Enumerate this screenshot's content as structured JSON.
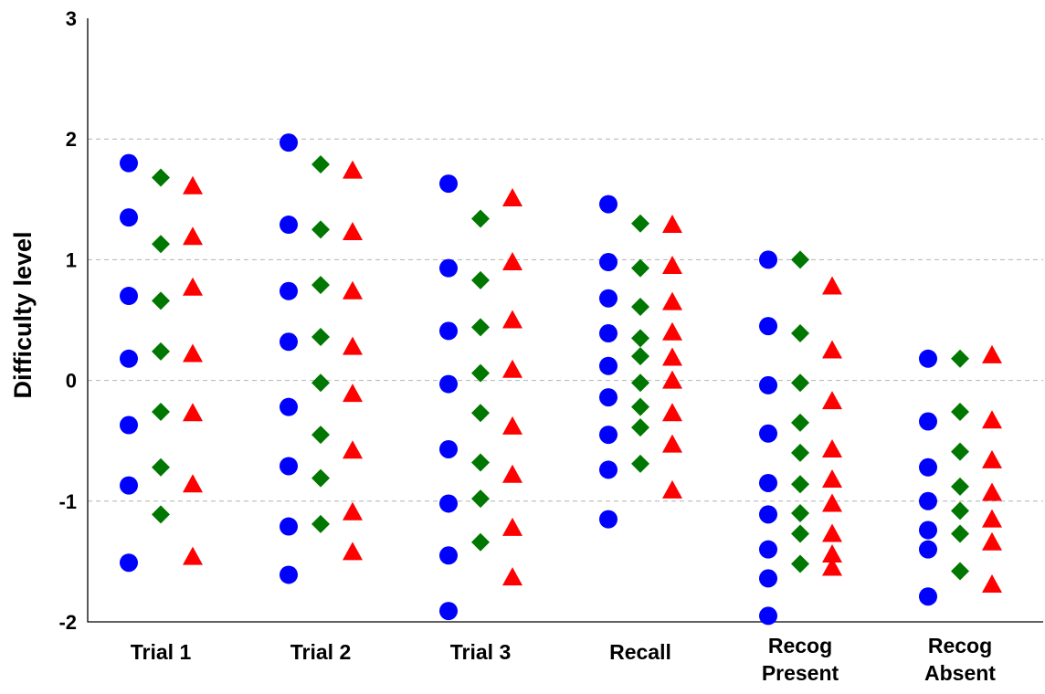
{
  "chart_data": {
    "type": "scatter",
    "title": "",
    "ylabel": "Difficulty level",
    "xlabel": "",
    "ylim": [
      -2,
      3
    ],
    "yticks": [
      -2,
      -1,
      0,
      1,
      2,
      3
    ],
    "grid": true,
    "categories": [
      [
        "Trial 1"
      ],
      [
        "Trial 2"
      ],
      [
        "Trial 3"
      ],
      [
        "Recall"
      ],
      [
        "Recog",
        "Present"
      ],
      [
        "Recog",
        "Absent"
      ]
    ],
    "series": [
      {
        "marker": "circle",
        "color": "#0000ff",
        "values": [
          [
            1.8,
            1.35,
            0.7,
            0.18,
            -0.37,
            -0.87,
            -1.51
          ],
          [
            1.97,
            1.29,
            0.74,
            0.32,
            -0.22,
            -0.71,
            -1.21,
            -1.61
          ],
          [
            1.63,
            0.93,
            0.41,
            -0.03,
            -0.57,
            -1.02,
            -1.45,
            -1.91
          ],
          [
            1.46,
            0.98,
            0.68,
            0.39,
            0.12,
            -0.14,
            -0.45,
            -0.74,
            -1.15
          ],
          [
            1.0,
            0.45,
            -0.04,
            -0.44,
            -0.85,
            -1.11,
            -1.4,
            -1.64,
            -1.95
          ],
          [
            0.18,
            -0.34,
            -0.72,
            -1.0,
            -1.24,
            -1.4,
            -1.79
          ]
        ]
      },
      {
        "marker": "diamond",
        "color": "#007700",
        "values": [
          [
            1.68,
            1.13,
            0.66,
            0.24,
            -0.26,
            -0.72,
            -1.11
          ],
          [
            1.79,
            1.25,
            0.79,
            0.36,
            -0.02,
            -0.45,
            -0.81,
            -1.19
          ],
          [
            1.34,
            0.83,
            0.44,
            0.06,
            -0.27,
            -0.68,
            -0.98,
            -1.34
          ],
          [
            1.3,
            0.93,
            0.61,
            0.35,
            0.2,
            -0.02,
            -0.22,
            -0.39,
            -0.69
          ],
          [
            1.0,
            0.39,
            -0.02,
            -0.35,
            -0.6,
            -0.86,
            -1.1,
            -1.27,
            -1.52
          ],
          [
            0.18,
            -0.26,
            -0.59,
            -0.88,
            -1.08,
            -1.27,
            -1.58
          ]
        ]
      },
      {
        "marker": "triangle",
        "color": "#ff0000",
        "values": [
          [
            1.61,
            1.19,
            0.77,
            0.22,
            -0.27,
            -0.86,
            -1.46
          ],
          [
            1.74,
            1.23,
            0.74,
            0.28,
            -0.11,
            -0.58,
            -1.09,
            -1.42
          ],
          [
            1.51,
            0.98,
            0.5,
            0.09,
            -0.38,
            -0.78,
            -1.22,
            -1.63
          ],
          [
            1.29,
            0.95,
            0.65,
            0.4,
            0.19,
            0.0,
            -0.27,
            -0.53,
            -0.91
          ],
          [
            0.78,
            0.25,
            -0.17,
            -0.57,
            -0.82,
            -1.02,
            -1.27,
            -1.44,
            -1.55
          ],
          [
            0.21,
            -0.33,
            -0.66,
            -0.93,
            -1.15,
            -1.34,
            -1.69
          ]
        ]
      }
    ]
  }
}
